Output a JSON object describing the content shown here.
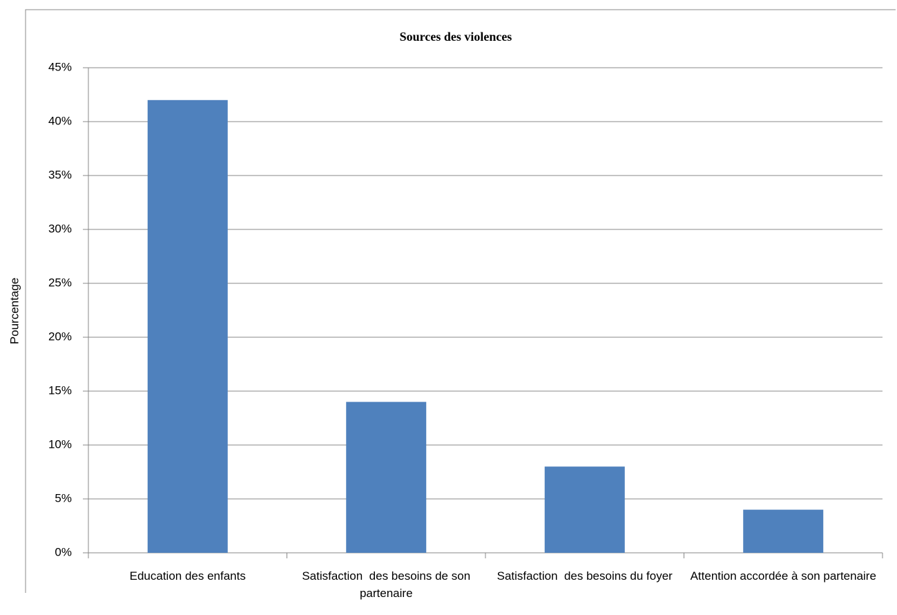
{
  "chart_data": {
    "type": "bar",
    "title": "Sources des violences",
    "y_label": "Pourcentage",
    "categories": [
      "Education des enfants",
      "Satisfaction  des besoins de son partenaire",
      "Satisfaction  des besoins du foyer",
      "Attention accordée à son partenaire"
    ],
    "values": [
      42,
      14,
      8,
      4
    ],
    "color": "#4f81bd",
    "ylim": [
      0,
      45
    ],
    "yticks": [
      {
        "value": 0,
        "label": "0%"
      },
      {
        "value": 5,
        "label": "5%"
      },
      {
        "value": 10,
        "label": "10%"
      },
      {
        "value": 15,
        "label": "15%"
      },
      {
        "value": 20,
        "label": "20%"
      },
      {
        "value": 25,
        "label": "25%"
      },
      {
        "value": 30,
        "label": "30%"
      },
      {
        "value": 35,
        "label": "35%"
      },
      {
        "value": 40,
        "label": "40%"
      },
      {
        "value": 45,
        "label": "45%"
      }
    ],
    "grid": true
  }
}
